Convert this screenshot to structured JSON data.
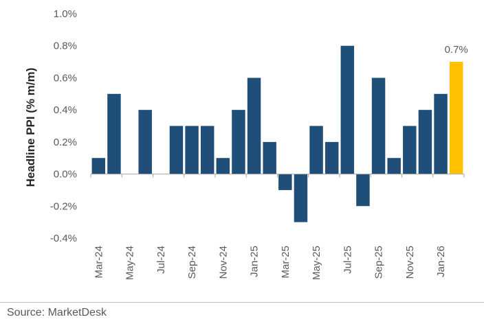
{
  "chart_data": {
    "type": "bar",
    "ylabel": "Headline PPI (% m/m)",
    "ylim": [
      -0.4,
      1.0
    ],
    "ytick_values": [
      -0.4,
      -0.2,
      0.0,
      0.2,
      0.4,
      0.6,
      0.8,
      1.0
    ],
    "ytick_labels": [
      "-0.4%",
      "-0.2%",
      "0.0%",
      "0.2%",
      "0.4%",
      "0.6%",
      "0.8%",
      "1.0%"
    ],
    "categories": [
      "Mar-24",
      "Apr-24",
      "May-24",
      "Jun-24",
      "Jul-24",
      "Aug-24",
      "Sep-24",
      "Oct-24",
      "Nov-24",
      "Dec-24",
      "Jan-25",
      "Feb-25",
      "Mar-25",
      "Apr-25",
      "May-25",
      "Jun-25",
      "Jul-25",
      "Aug-25",
      "Sep-25",
      "Oct-25",
      "Nov-25",
      "Dec-25",
      "Jan-26",
      "Feb-26"
    ],
    "xtick_labels": [
      "Mar-24",
      "May-24",
      "Jul-24",
      "Sep-24",
      "Nov-24",
      "Jan-25",
      "Mar-25",
      "May-25",
      "Jul-25",
      "Sep-25",
      "Nov-25",
      "Jan-26"
    ],
    "values": [
      0.1,
      0.5,
      0.0,
      0.4,
      0.0,
      0.3,
      0.3,
      0.3,
      0.1,
      0.4,
      0.6,
      0.2,
      -0.1,
      -0.3,
      0.3,
      0.2,
      0.8,
      -0.2,
      0.6,
      0.1,
      0.3,
      0.4,
      0.5,
      0.7
    ],
    "highlight_index": 23,
    "highlight_label": "0.7%",
    "bar_color": "#1f4e79",
    "highlight_color": "#ffc000",
    "grid": false
  },
  "source": "Source: MarketDesk"
}
